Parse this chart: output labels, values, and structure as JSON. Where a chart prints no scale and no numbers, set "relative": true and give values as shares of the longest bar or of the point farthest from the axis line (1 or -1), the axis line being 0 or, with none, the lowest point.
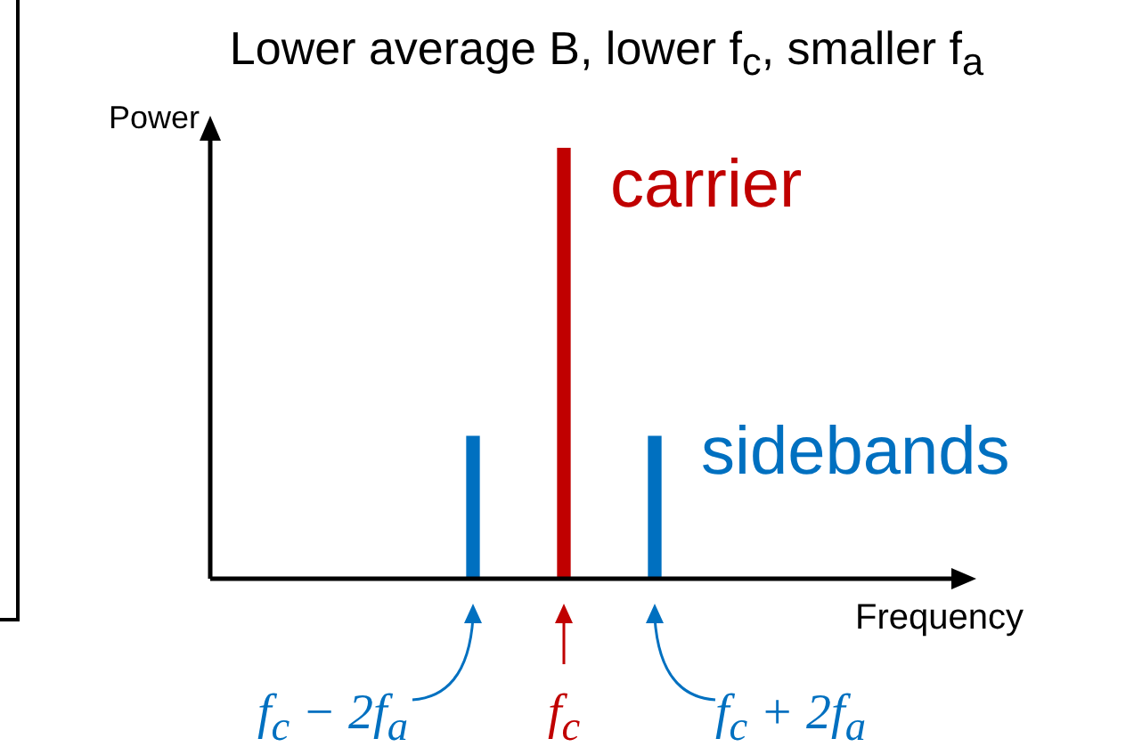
{
  "chart_data": {
    "type": "bar",
    "title": "Lower average B, lower f$_{c}$, smaller f$_{a}$",
    "xlabel": "Frequency",
    "relative": true,
    "legend": false,
    "categories": [
      null,
      null,
      null
    ],
    "values": [
      0.33,
      1,
      0.33
    ],
    "colors": [
      "#0070c0",
      "#c00000",
      "#0070c0"
    ],
    "annotations": [
      "f$_{c}$ − 2f$_{a}$",
      "f$_{c}$",
      "f$_{c}$ + 2f$_{a}$",
      "carrier",
      "sidebands",
      "Power"
    ]
  }
}
